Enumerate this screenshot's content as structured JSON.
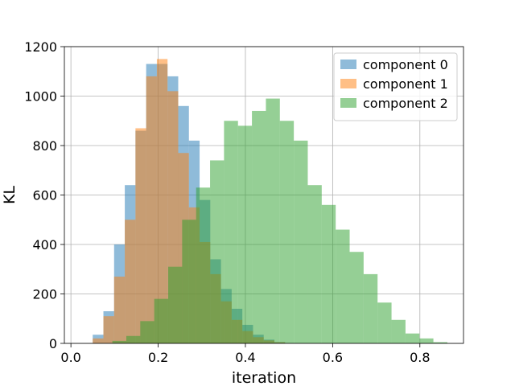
{
  "chart_data": {
    "type": "histogram",
    "title": "",
    "xlabel": "iteration",
    "ylabel": "KL",
    "xlim": [
      -0.015,
      0.9
    ],
    "ylim": [
      0,
      1200
    ],
    "x_ticks": [
      "0.0",
      "0.2",
      "0.4",
      "0.6",
      "0.8"
    ],
    "x_tick_values": [
      0.0,
      0.2,
      0.4,
      0.6,
      0.8
    ],
    "y_ticks": [
      "0",
      "200",
      "400",
      "600",
      "800",
      "1000",
      "1200"
    ],
    "y_tick_values": [
      0,
      200,
      400,
      600,
      800,
      1000,
      1200
    ],
    "grid": true,
    "legend_position": "top-right",
    "series": [
      {
        "name": "component 0",
        "color": "#1f77b4",
        "bin_start": 0.05,
        "bin_width": 0.0245,
        "counts": [
          35,
          130,
          400,
          640,
          860,
          1130,
          1130,
          1080,
          960,
          820,
          580,
          340,
          220,
          140,
          75,
          35,
          15,
          5
        ]
      },
      {
        "name": "component 1",
        "color": "#ff7f0e",
        "bin_start": 0.05,
        "bin_width": 0.0245,
        "counts": [
          20,
          110,
          270,
          500,
          870,
          1080,
          1150,
          1020,
          770,
          550,
          410,
          280,
          170,
          95,
          50,
          25,
          12,
          5
        ]
      },
      {
        "name": "component 2",
        "color": "#2ca02c",
        "bin_start": 0.095,
        "bin_width": 0.032,
        "counts": [
          10,
          30,
          90,
          180,
          310,
          500,
          630,
          740,
          900,
          880,
          940,
          990,
          900,
          820,
          640,
          560,
          460,
          370,
          280,
          165,
          95,
          40,
          20,
          5
        ]
      }
    ]
  }
}
